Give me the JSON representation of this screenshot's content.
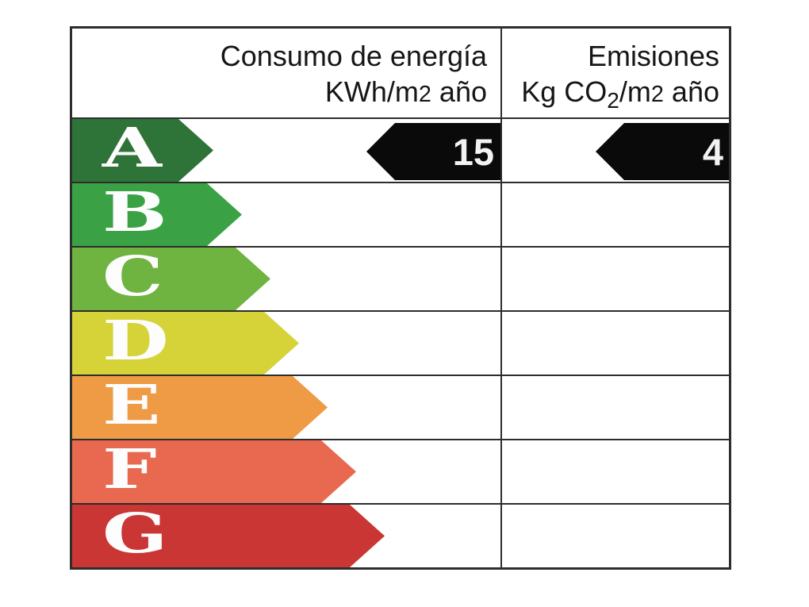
{
  "header": {
    "energy": {
      "line1": "Consumo de energía",
      "unit_base": "KWh/m",
      "unit_exp": "2",
      "unit_rest": " año"
    },
    "emissions": {
      "line1": "Emisiones",
      "unit_base": "Kg CO",
      "unit_sub": "2",
      "unit_mid": "/m",
      "unit_exp": "2",
      "unit_rest": " año"
    }
  },
  "ratings": [
    {
      "letter": "A",
      "color": "#2e7338"
    },
    {
      "letter": "B",
      "color": "#3aa245"
    },
    {
      "letter": "C",
      "color": "#6fb340"
    },
    {
      "letter": "D",
      "color": "#d5d338"
    },
    {
      "letter": "E",
      "color": "#ef9a44"
    },
    {
      "letter": "F",
      "color": "#e8694f"
    },
    {
      "letter": "G",
      "color": "#ca3634"
    }
  ],
  "indicators": {
    "arrow_color": "#0a0a0a",
    "value_text_color": "#f2f2f2",
    "energy_value": "15",
    "emissions_value": "4"
  },
  "chart_data": {
    "type": "table",
    "title": "Etiqueta de eficiencia energética (rating label)",
    "columns": [
      "Consumo de energía KWh/m2 año",
      "Emisiones Kg CO2/m2 año"
    ],
    "rating_scale": [
      "A",
      "B",
      "C",
      "D",
      "E",
      "F",
      "G"
    ],
    "rating_colors": [
      "#2e7338",
      "#3aa245",
      "#6fb340",
      "#d5d338",
      "#ef9a44",
      "#e8694f",
      "#ca3634"
    ],
    "current_rating": "A",
    "values": {
      "consumo_de_energia_kwh_m2_ano": 15,
      "emisiones_kg_co2_m2_ano": 4
    },
    "legend_position": "none",
    "grid": true
  }
}
